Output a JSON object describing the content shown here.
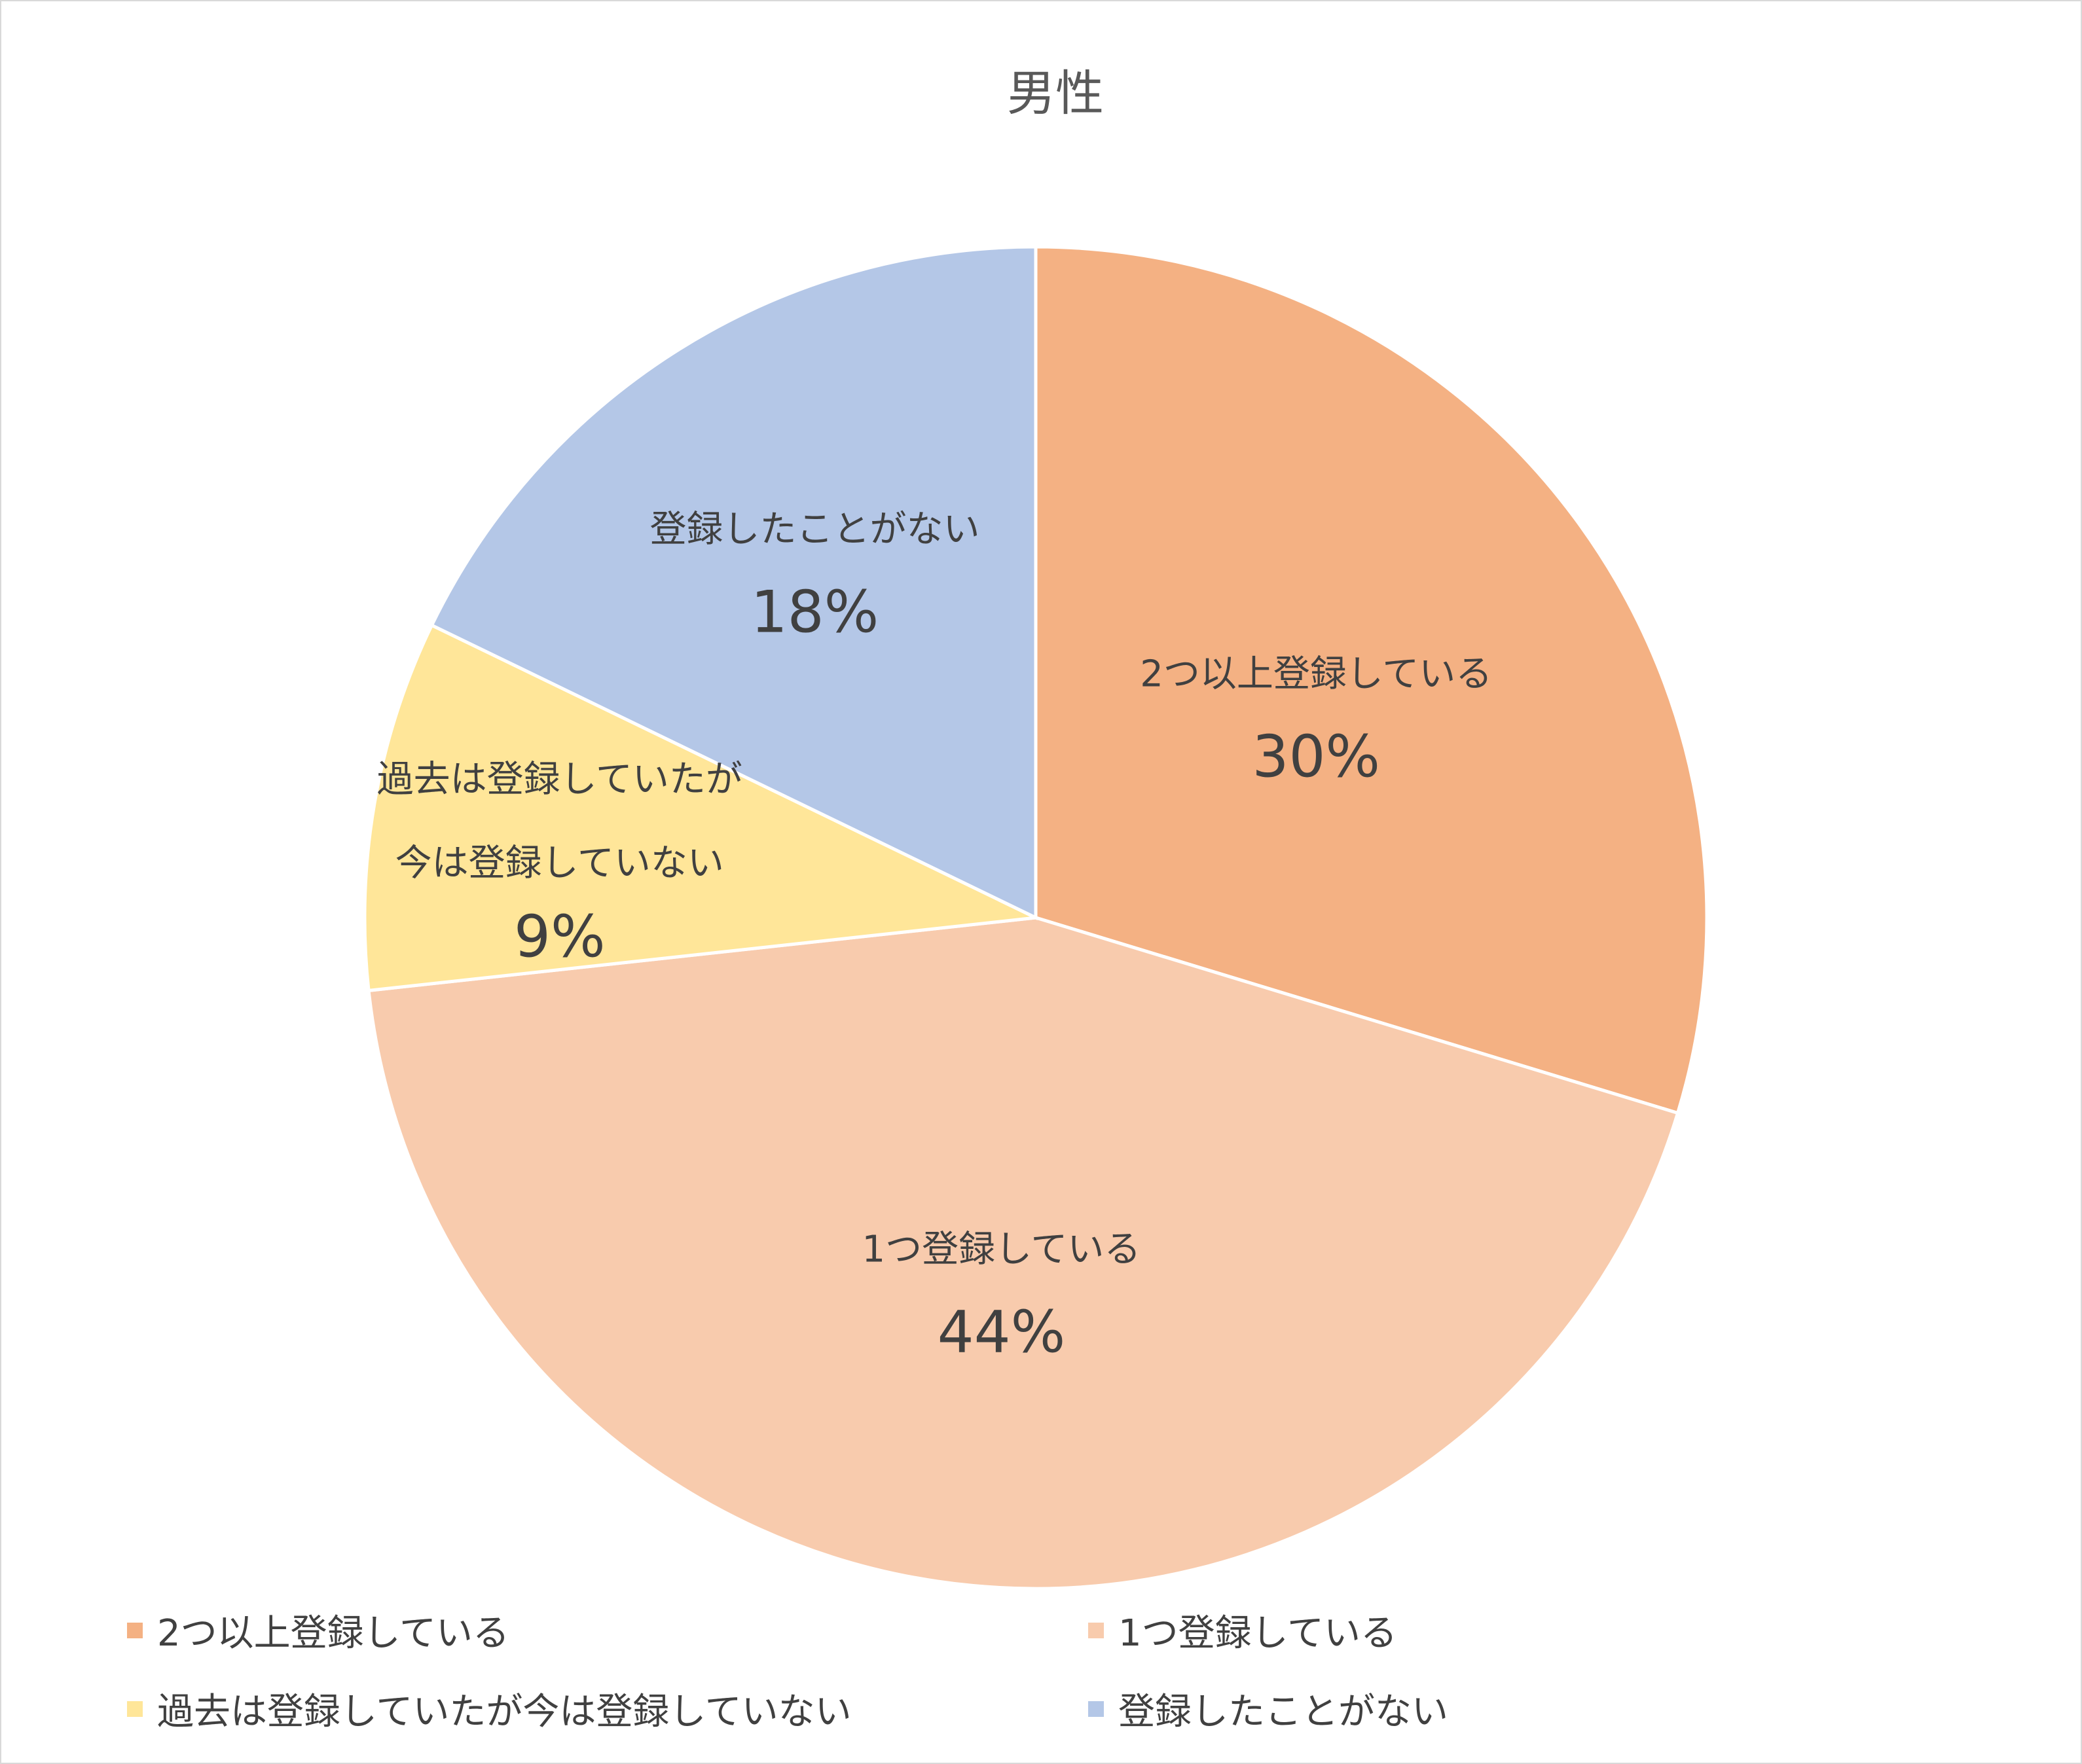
{
  "chart_data": {
    "type": "pie",
    "title": "男性",
    "categories": [
      "2つ以上登録している",
      "1つ登録している",
      "過去は登録していたが今は登録していない",
      "登録したことがない"
    ],
    "values": [
      30,
      44,
      9,
      18
    ],
    "data_labels": [
      {
        "name_lines": [
          "2つ以上登録している"
        ],
        "percent": "30%"
      },
      {
        "name_lines": [
          "1つ登録している"
        ],
        "percent": "44%"
      },
      {
        "name_lines": [
          "過去は登録していたが",
          "今は登録していない"
        ],
        "percent": "9%"
      },
      {
        "name_lines": [
          "登録したことがない"
        ],
        "percent": "18%"
      }
    ],
    "colors": [
      "#F4B183",
      "#F8CBAD",
      "#FFE699",
      "#B4C7E7"
    ],
    "legend_position": "bottom"
  }
}
